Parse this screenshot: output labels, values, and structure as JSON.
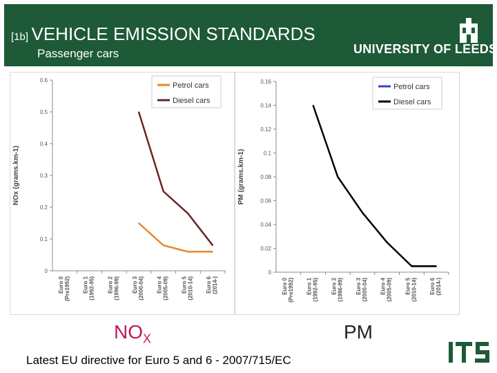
{
  "header": {
    "prefix": "[1b]",
    "title": "VEHICLE EMISSION STANDARDS",
    "subtitle": "Passenger cars",
    "logo_text": "UNIVERSITY OF LEEDS"
  },
  "labels": {
    "nox_main": "NO",
    "nox_sub": "X",
    "pm": "PM"
  },
  "footer": {
    "text": "Latest EU directive for Euro 5 and 6 - 2007/715/EC"
  },
  "colors": {
    "header_bg": "#1e5a38",
    "petrol": "#e8862a",
    "diesel_nox": "#6b2424",
    "petrol_pm": "#3344cc",
    "diesel_pm": "#000000",
    "its_logo": "#1e5a38"
  },
  "chart_data": [
    {
      "type": "line",
      "title": "NOx",
      "ylabel": "NOx (grams.km-1)",
      "categories": [
        "Euro 0 (Pre1992)",
        "Euro 1 (1992-95)",
        "Euro 2 (1996-99)",
        "Euro 3 (2000-04)",
        "Euro 4 (2005-09)",
        "Euro 5 (2010-14)",
        "Euro 6 (2014-)"
      ],
      "yticks": [
        "0",
        "0.1",
        "0.2",
        "0.3",
        "0.4",
        "0.5",
        "0.6"
      ],
      "ylim": [
        0,
        0.6
      ],
      "series": [
        {
          "name": "Petrol cars",
          "values": [
            null,
            null,
            null,
            0.15,
            0.08,
            0.06,
            0.06
          ]
        },
        {
          "name": "Diesel cars",
          "values": [
            null,
            null,
            null,
            0.5,
            0.25,
            0.18,
            0.08
          ]
        }
      ],
      "legend": "top-right"
    },
    {
      "type": "line",
      "title": "PM",
      "ylabel": "PM (grams.km-1)",
      "categories": [
        "Euro 0 (Pre1992)",
        "Euro 1 (1992-95)",
        "Euro 2 (1996-99)",
        "Euro 3 (2000-04)",
        "Euro 4 (2005-09)",
        "Euro 5 (2010-14)",
        "Euro 6 (2014-)"
      ],
      "yticks": [
        "0",
        "0.02",
        "0.04",
        "0.06",
        "0.08",
        "0.1",
        "0.12",
        "0.14",
        "0.16"
      ],
      "ylim": [
        0,
        0.16
      ],
      "series": [
        {
          "name": "Petrol cars",
          "values": [
            null,
            null,
            null,
            null,
            null,
            0.005,
            0.005
          ]
        },
        {
          "name": "Diesel cars",
          "values": [
            null,
            0.14,
            0.08,
            0.05,
            0.025,
            0.005,
            0.005
          ]
        }
      ],
      "legend": "top-right"
    }
  ]
}
